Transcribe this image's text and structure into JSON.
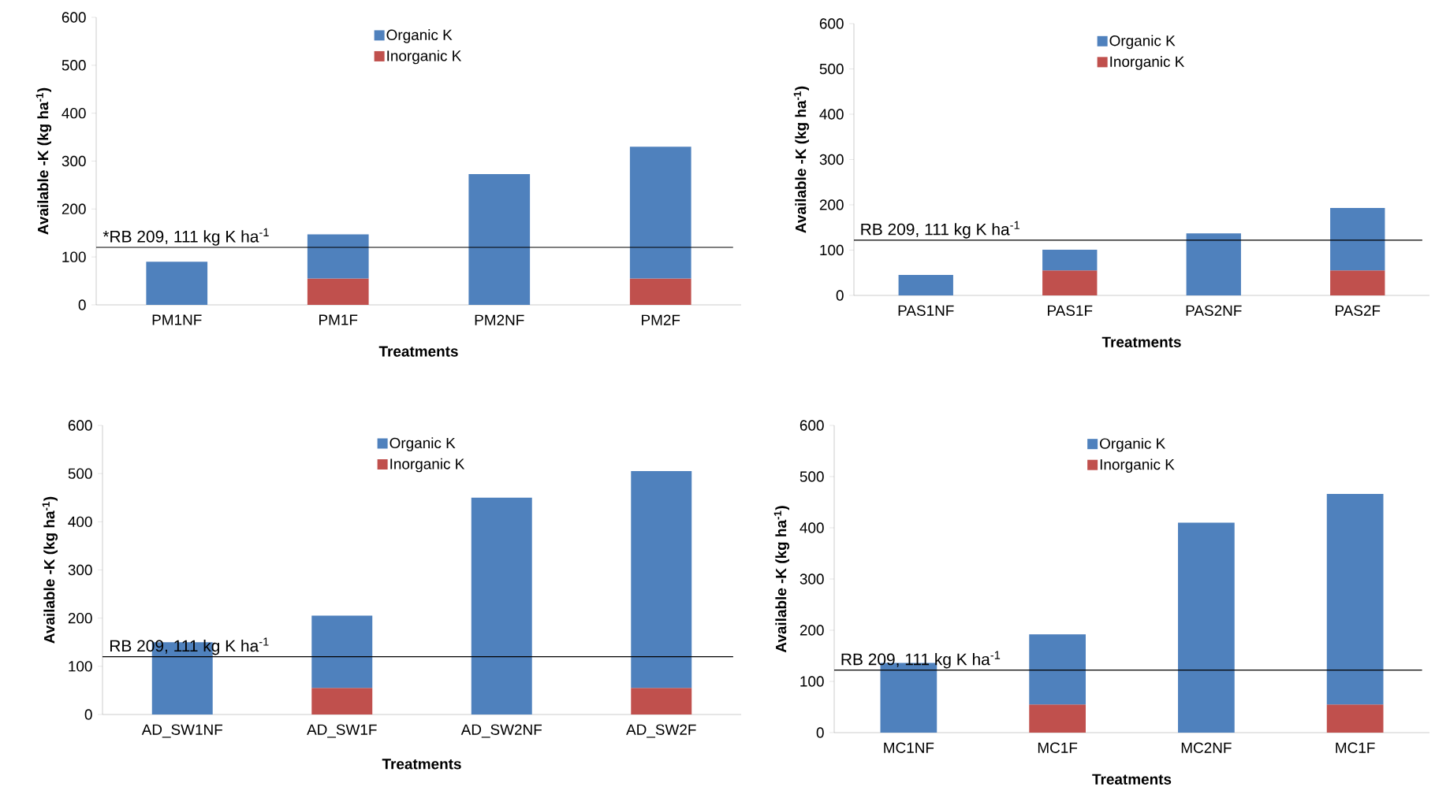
{
  "chart_data": [
    {
      "type": "bar",
      "stacked": true,
      "xlabel": "Treatments",
      "ylabel": "Available -K (kg ha$^{-1}$)",
      "categories": [
        "PM1NF",
        "PM1F",
        "PM2NF",
        "PM2F"
      ],
      "series": [
        {
          "name": "Inorganic K",
          "color": "#c0504d",
          "values": [
            null,
            55,
            null,
            55
          ]
        },
        {
          "name": "Organic K",
          "color": "#4f81bd",
          "values": [
            90,
            92,
            273,
            275
          ]
        }
      ],
      "ylim": [
        0,
        600
      ],
      "yticks": [
        0,
        100,
        200,
        300,
        400,
        500,
        600
      ],
      "legend": "top",
      "ref_lines": [
        {
          "axis": "y",
          "value": 120,
          "label": "*RB 209, 111 kg K ha$^{-1}$",
          "color": "#000000"
        }
      ]
    },
    {
      "type": "bar",
      "stacked": true,
      "xlabel": "Treatments",
      "ylabel": "Available -K (kg ha$^{-1}$)",
      "categories": [
        "PAS1NF",
        "PAS1F",
        "PAS2NF",
        "PAS2F"
      ],
      "series": [
        {
          "name": "Inorganic K",
          "color": "#c0504d",
          "values": [
            null,
            55,
            null,
            55
          ]
        },
        {
          "name": "Organic K",
          "color": "#4f81bd",
          "values": [
            45,
            46,
            137,
            138
          ]
        }
      ],
      "ylim": [
        0,
        600
      ],
      "yticks": [
        0,
        100,
        200,
        300,
        400,
        500,
        600
      ],
      "legend": "top",
      "ref_lines": [
        {
          "axis": "y",
          "value": 122,
          "label": "RB 209, 111 kg K ha$^{-1}$",
          "color": "#000000"
        }
      ]
    },
    {
      "type": "bar",
      "stacked": true,
      "xlabel": "Treatments",
      "ylabel": "Available -K (kg ha$^{-1}$)",
      "categories": [
        "AD_SW1NF",
        "AD_SW1F",
        "AD_SW2NF",
        "AD_SW2F"
      ],
      "series": [
        {
          "name": "Inorganic K",
          "color": "#c0504d",
          "values": [
            null,
            55,
            null,
            55
          ]
        },
        {
          "name": "Organic K",
          "color": "#4f81bd",
          "values": [
            150,
            150,
            450,
            450
          ]
        }
      ],
      "ylim": [
        0,
        600
      ],
      "yticks": [
        0,
        100,
        200,
        300,
        400,
        500,
        600
      ],
      "legend": "top",
      "ref_lines": [
        {
          "axis": "y",
          "value": 120,
          "label": "RB 209, 111 kg K ha$^{-1}$",
          "color": "#000000"
        }
      ]
    },
    {
      "type": "bar",
      "stacked": true,
      "xlabel": "Treatments",
      "ylabel": "Available -K (kg ha$^{-1}$)",
      "categories": [
        "MC1NF",
        "MC1F",
        "MC2NF",
        "MC1F"
      ],
      "series": [
        {
          "name": "Inorganic K",
          "color": "#c0504d",
          "values": [
            null,
            55,
            null,
            55
          ]
        },
        {
          "name": "Organic K",
          "color": "#4f81bd",
          "values": [
            136,
            137,
            410,
            411
          ]
        }
      ],
      "ylim": [
        0,
        600
      ],
      "yticks": [
        0,
        100,
        200,
        300,
        400,
        500,
        600
      ],
      "legend": "top",
      "ref_lines": [
        {
          "axis": "y",
          "value": 122,
          "label": "RB 209, 111 kg K ha$^{-1}$",
          "color": "#000000"
        }
      ]
    }
  ]
}
